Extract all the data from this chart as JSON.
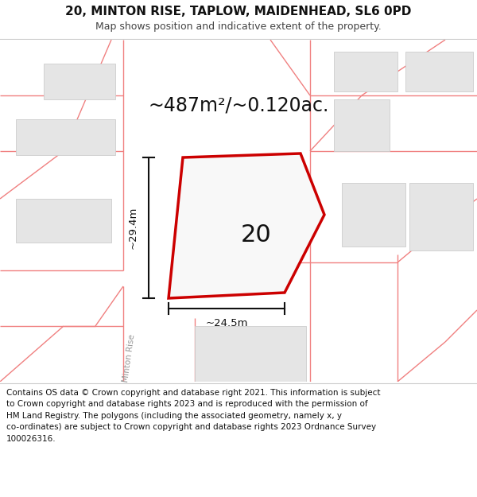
{
  "title_line1": "20, MINTON RISE, TAPLOW, MAIDENHEAD, SL6 0PD",
  "title_line2": "Map shows position and indicative extent of the property.",
  "area_text": "~487m²/~0.120ac.",
  "property_number": "20",
  "dim_vertical": "~29.4m",
  "dim_horizontal": "~24.5m",
  "road_label": "Minton Rise",
  "copyright_text": "Contains OS data © Crown copyright and database right 2021. This information is subject\nto Crown copyright and database rights 2023 and is reproduced with the permission of\nHM Land Registry. The polygons (including the associated geometry, namely x, y\nco-ordinates) are subject to Crown copyright and database rights 2023 Ordnance Survey\n100026316.",
  "bg_color": "#ffffff",
  "map_bg": "#ffffff",
  "road_color": "#f08080",
  "polygon_edge_color": "#cc0000",
  "polygon_fill": "#f8f8f8",
  "building_fill": "#d8d8d8",
  "building_edge": "#bbbbbb",
  "dim_color": "#111111",
  "sep_color": "#cccccc"
}
